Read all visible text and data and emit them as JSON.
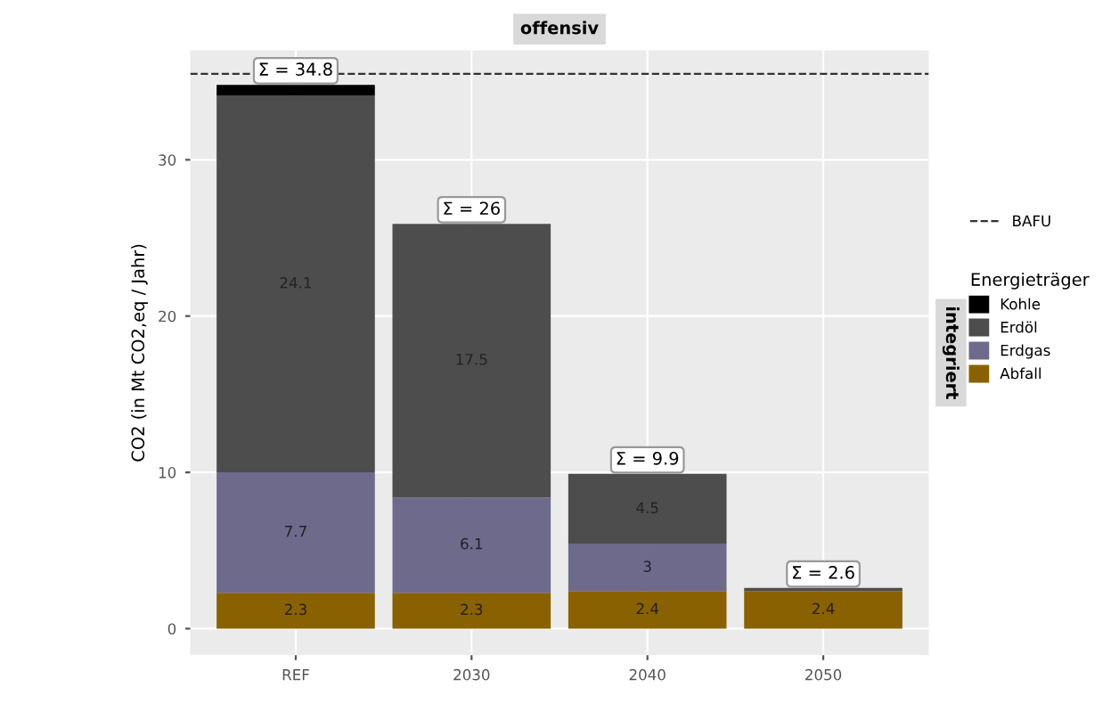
{
  "chart_data": {
    "type": "bar",
    "stacked": true,
    "ylabel": "CO2 (in Mt CO2,eq / Jahr)",
    "legend_title": "Energieträger",
    "categories": [
      "REF",
      "2030",
      "2040",
      "2050"
    ],
    "series": [
      {
        "name": "Abfall",
        "color": "#8a6100",
        "values": [
          2.3,
          2.3,
          2.4,
          2.4
        ],
        "value_labels": [
          "2.3",
          "2.3",
          "2.4",
          "2.4"
        ]
      },
      {
        "name": "Erdgas",
        "color": "#6e6a8c",
        "values": [
          7.7,
          6.1,
          3,
          null
        ],
        "value_labels": [
          "7.7",
          "6.1",
          "3",
          null
        ]
      },
      {
        "name": "Erdöl",
        "color": "#4d4d4d",
        "values": [
          24.1,
          17.5,
          4.5,
          0.2
        ],
        "value_labels": [
          "24.1",
          "17.5",
          "4.5",
          null
        ]
      },
      {
        "name": "Kohle",
        "color": "#000000",
        "values": [
          0.7,
          null,
          null,
          null
        ],
        "value_labels": [
          null,
          null,
          null,
          null
        ]
      }
    ],
    "totals": [
      "Σ = 34.8",
      "Σ = 26",
      "Σ = 9.9",
      "Σ = 2.6"
    ],
    "ref_lines": [
      {
        "axis": "y",
        "value": 35.5,
        "label": "BAFU",
        "color": "#333333",
        "line_style": "dashed"
      }
    ],
    "annotations": [
      "offensiv",
      "integriert"
    ],
    "ylim": [
      -1.7,
      37
    ],
    "yticks": [
      0,
      10,
      20,
      30
    ],
    "grid": true,
    "legend": "right"
  }
}
